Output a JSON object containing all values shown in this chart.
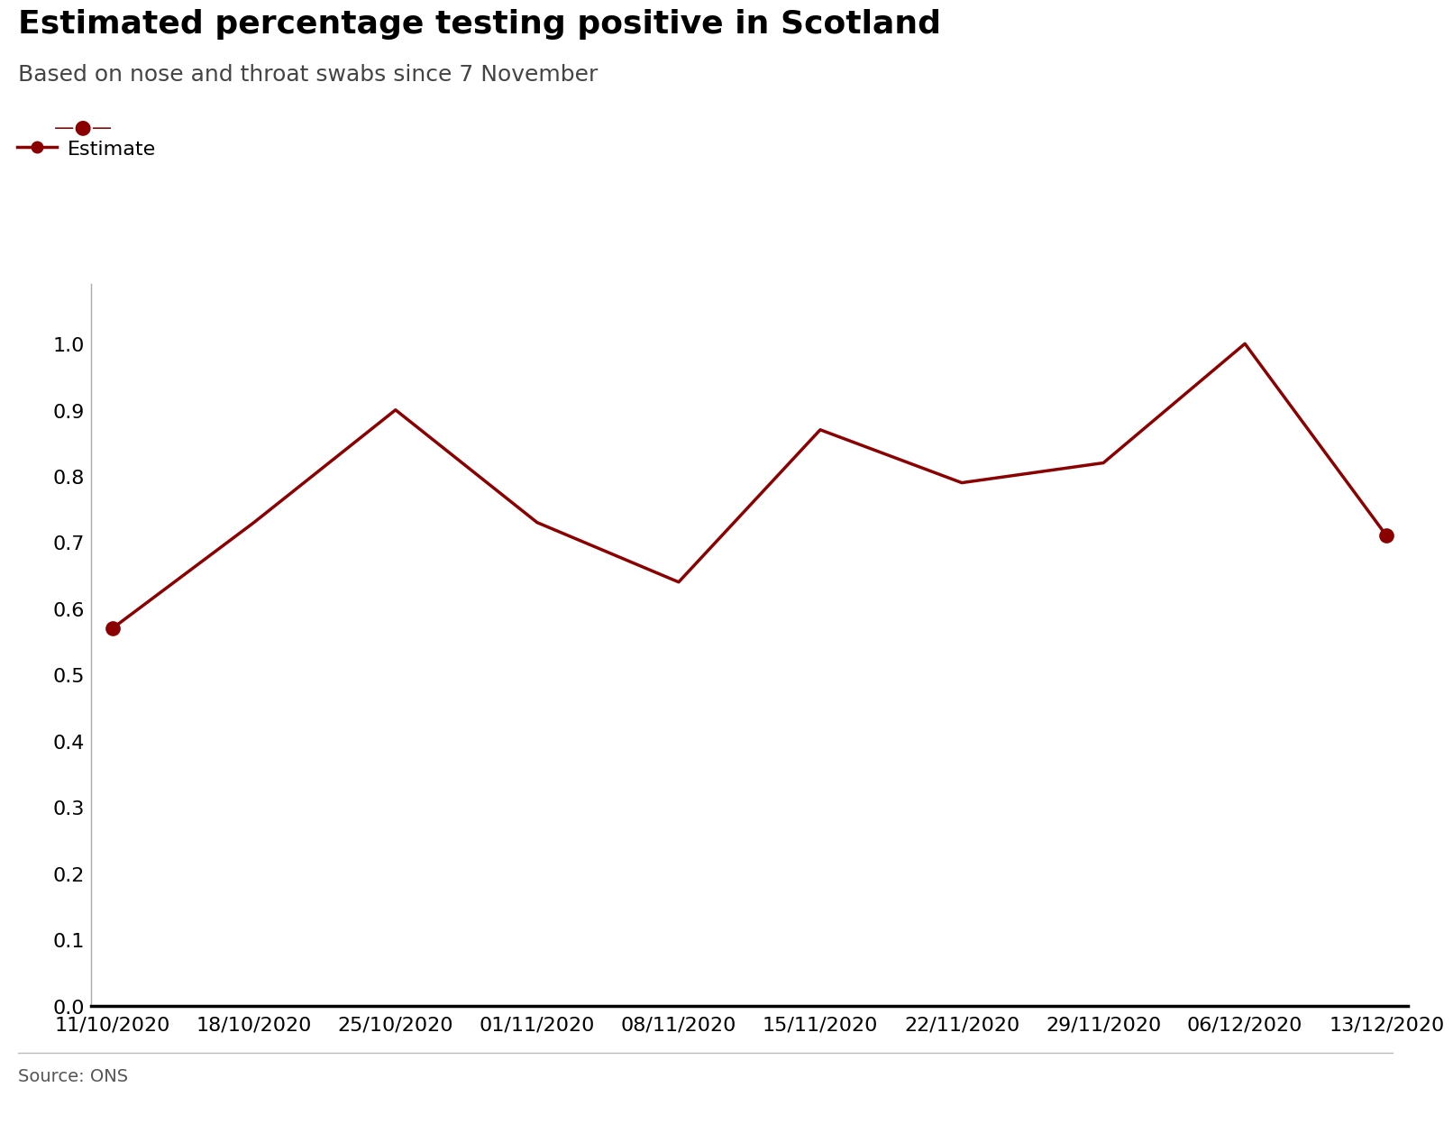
{
  "title": "Estimated percentage testing positive in Scotland",
  "subtitle": "Based on nose and throat swabs since 7 November",
  "source": "Source: ONS",
  "x_labels": [
    "11/10/2020",
    "18/10/2020",
    "25/10/2020",
    "01/11/2020",
    "08/11/2020",
    "15/11/2020",
    "22/11/2020",
    "29/11/2020",
    "06/12/2020",
    "13/12/2020"
  ],
  "y_values": [
    0.57,
    0.73,
    0.9,
    0.73,
    0.64,
    0.87,
    0.79,
    0.82,
    1.0,
    0.71
  ],
  "first_marker_index": 0,
  "last_marker_index": 9,
  "line_color": "#8B0000",
  "marker_color": "#8B0000",
  "ylim": [
    0.0,
    1.09
  ],
  "yticks": [
    0.0,
    0.1,
    0.2,
    0.3,
    0.4,
    0.5,
    0.6,
    0.7,
    0.8,
    0.9,
    1.0
  ],
  "legend_label": "Estimate",
  "title_fontsize": 26,
  "subtitle_fontsize": 18,
  "tick_fontsize": 16,
  "source_fontsize": 14,
  "legend_fontsize": 16,
  "background_color": "#ffffff",
  "left_spine_color": "#aaaaaa",
  "bottom_spine_color": "#000000",
  "bbc_bg": "#333333",
  "bbc_fg": "#ffffff"
}
